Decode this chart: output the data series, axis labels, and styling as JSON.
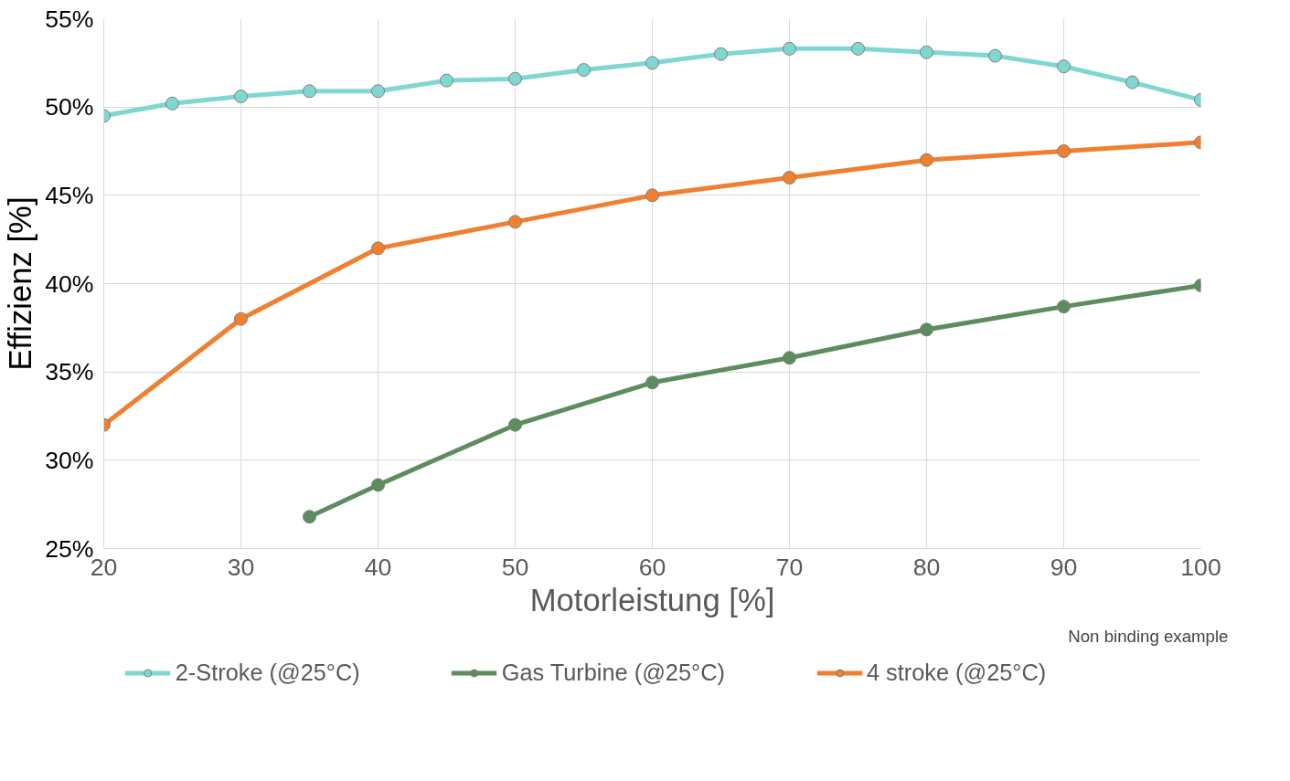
{
  "chart_data": {
    "type": "line",
    "xlabel": "Motorleistung [%]",
    "ylabel": "Effizienz [%]",
    "annotations": [
      "Non binding example"
    ],
    "xlim": [
      20,
      100
    ],
    "ylim": [
      25,
      55
    ],
    "xticks": [
      20,
      30,
      40,
      50,
      60,
      70,
      80,
      90,
      100
    ],
    "yticks": [
      {
        "value": 25,
        "label": "25%"
      },
      {
        "value": 30,
        "label": "30%"
      },
      {
        "value": 35,
        "label": "35%"
      },
      {
        "value": 40,
        "label": "40%"
      },
      {
        "value": 45,
        "label": "45%"
      },
      {
        "value": 50,
        "label": "50%"
      },
      {
        "value": 55,
        "label": "55%"
      }
    ],
    "grid": true,
    "legend": "bottom",
    "marker": "circle",
    "line_style": "solid",
    "series": [
      {
        "name": "2-Stroke (@25°C)",
        "color": "#7fd8d0",
        "x": [
          20,
          25,
          30,
          35,
          40,
          45,
          50,
          55,
          60,
          65,
          70,
          75,
          80,
          85,
          90,
          95,
          100
        ],
        "values": [
          49.5,
          50.2,
          50.6,
          50.9,
          50.9,
          51.5,
          51.6,
          52.1,
          52.5,
          53.0,
          53.3,
          53.3,
          53.1,
          52.9,
          52.3,
          51.4,
          50.4
        ]
      },
      {
        "name": "Gas Turbine (@25°C)",
        "color": "#5d8c5e",
        "x": [
          35,
          40,
          50,
          60,
          70,
          80,
          90,
          100
        ],
        "values": [
          26.8,
          28.6,
          32.0,
          34.4,
          35.8,
          37.4,
          38.7,
          39.9
        ]
      },
      {
        "name": "4 stroke (@25°C)",
        "color": "#f07f30",
        "x": [
          20,
          30,
          40,
          50,
          60,
          70,
          80,
          90,
          100
        ],
        "values": [
          32,
          38,
          42,
          43.5,
          45,
          46,
          47,
          47.5,
          48
        ]
      }
    ]
  }
}
